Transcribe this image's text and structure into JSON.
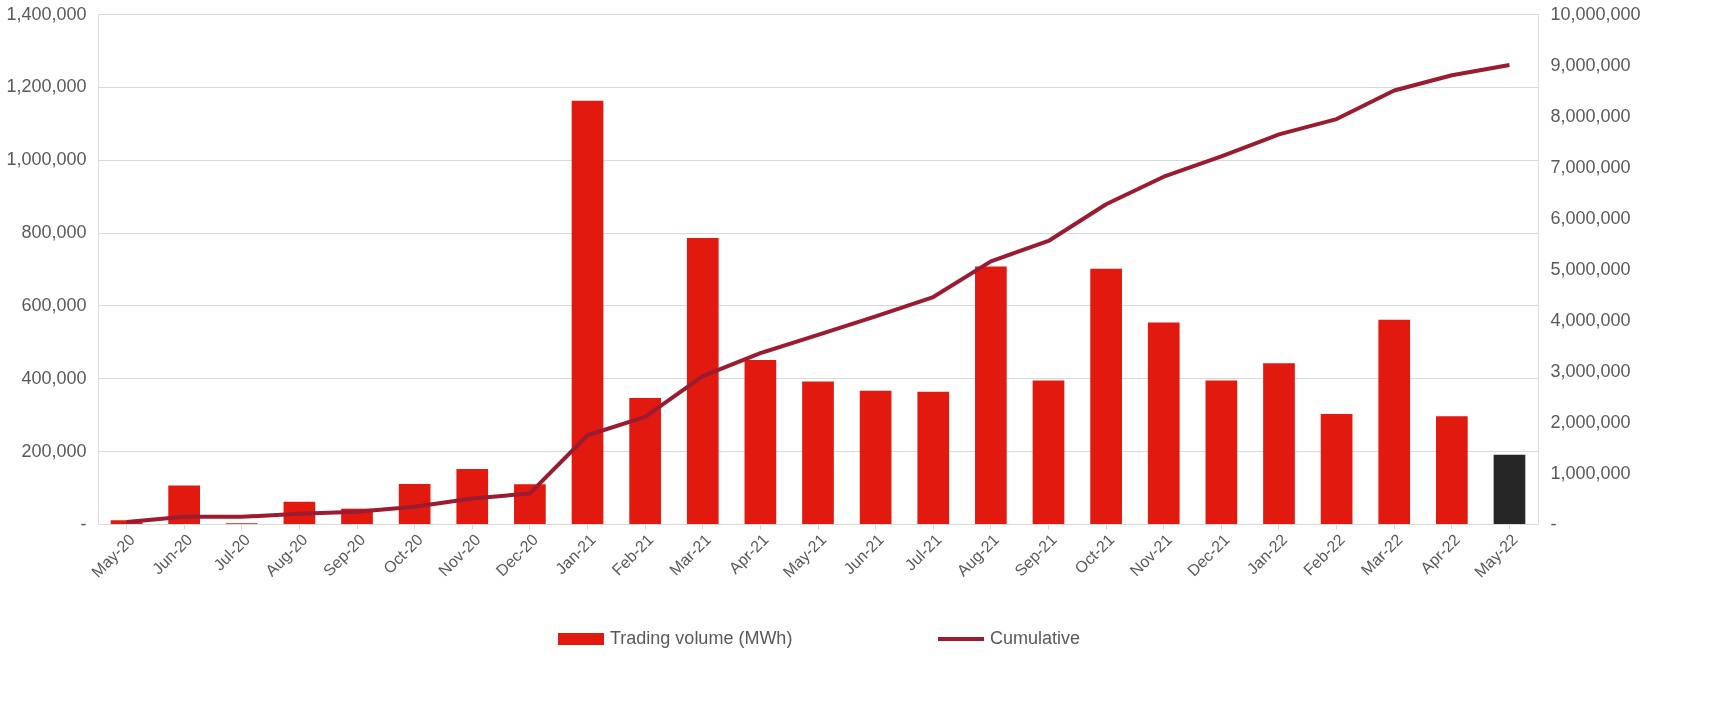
{
  "chart_data": {
    "type": "bar",
    "categories": [
      "May-20",
      "Jun-20",
      "Jul-20",
      "Aug-20",
      "Sep-20",
      "Oct-20",
      "Nov-20",
      "Dec-20",
      "Jan-21",
      "Feb-21",
      "Mar-21",
      "Apr-21",
      "May-21",
      "Jun-21",
      "Jul-21",
      "Aug-21",
      "Sep-21",
      "Oct-21",
      "Nov-21",
      "Dec-21",
      "Jan-22",
      "Feb-22",
      "Mar-22",
      "Apr-22",
      "May-22"
    ],
    "series": [
      {
        "name": "Trading volume (MWh)",
        "color": "#e2190f",
        "colors": [
          "#e2190f",
          "#e2190f",
          "#e2190f",
          "#e2190f",
          "#e2190f",
          "#e2190f",
          "#e2190f",
          "#e2190f",
          "#e2190f",
          "#e2190f",
          "#e2190f",
          "#e2190f",
          "#e2190f",
          "#e2190f",
          "#e2190f",
          "#e2190f",
          "#e2190f",
          "#e2190f",
          "#e2190f",
          "#e2190f",
          "#e2190f",
          "#e2190f",
          "#e2190f",
          "#e2190f",
          "#262626"
        ],
        "values": [
          10000,
          106000,
          2000,
          61000,
          42000,
          110000,
          151000,
          109000,
          1162000,
          346000,
          785000,
          450000,
          391000,
          366000,
          363000,
          707000,
          394000,
          701000,
          553000,
          394000,
          441000,
          302000,
          561000,
          296000,
          190000
        ]
      },
      {
        "name": "Cumulative",
        "type": "line",
        "axis": "y2",
        "color": "#9b1b30",
        "values": [
          40000,
          140000,
          140000,
          200000,
          240000,
          340000,
          500000,
          600000,
          1740000,
          2100000,
          2900000,
          3350000,
          3710000,
          4070000,
          4450000,
          5150000,
          5550000,
          6270000,
          6810000,
          7210000,
          7640000,
          7940000,
          8500000,
          8800000,
          9000000
        ]
      }
    ],
    "ylim": [
      0,
      1400000
    ],
    "yticks": [
      {
        "value": 0,
        "label": "-"
      },
      {
        "value": 200000,
        "label": "200,000"
      },
      {
        "value": 400000,
        "label": "400,000"
      },
      {
        "value": 600000,
        "label": "600,000"
      },
      {
        "value": 800000,
        "label": "800,000"
      },
      {
        "value": 1000000,
        "label": "1,000,000"
      },
      {
        "value": 1200000,
        "label": "1,200,000"
      },
      {
        "value": 1400000,
        "label": "1,400,000"
      }
    ],
    "y2lim": [
      0,
      10000000
    ],
    "y2ticks": [
      {
        "value": 0,
        "label": "-"
      },
      {
        "value": 1000000,
        "label": "1,000,000"
      },
      {
        "value": 2000000,
        "label": "2,000,000"
      },
      {
        "value": 3000000,
        "label": "3,000,000"
      },
      {
        "value": 4000000,
        "label": "4,000,000"
      },
      {
        "value": 5000000,
        "label": "5,000,000"
      },
      {
        "value": 6000000,
        "label": "6,000,000"
      },
      {
        "value": 7000000,
        "label": "7,000,000"
      },
      {
        "value": 8000000,
        "label": "8,000,000"
      },
      {
        "value": 9000000,
        "label": "9,000,000"
      },
      {
        "value": 10000000,
        "label": "10,000,000"
      }
    ],
    "grid": "y",
    "legend": "bottom",
    "line_style": "solid",
    "marker": "none"
  }
}
